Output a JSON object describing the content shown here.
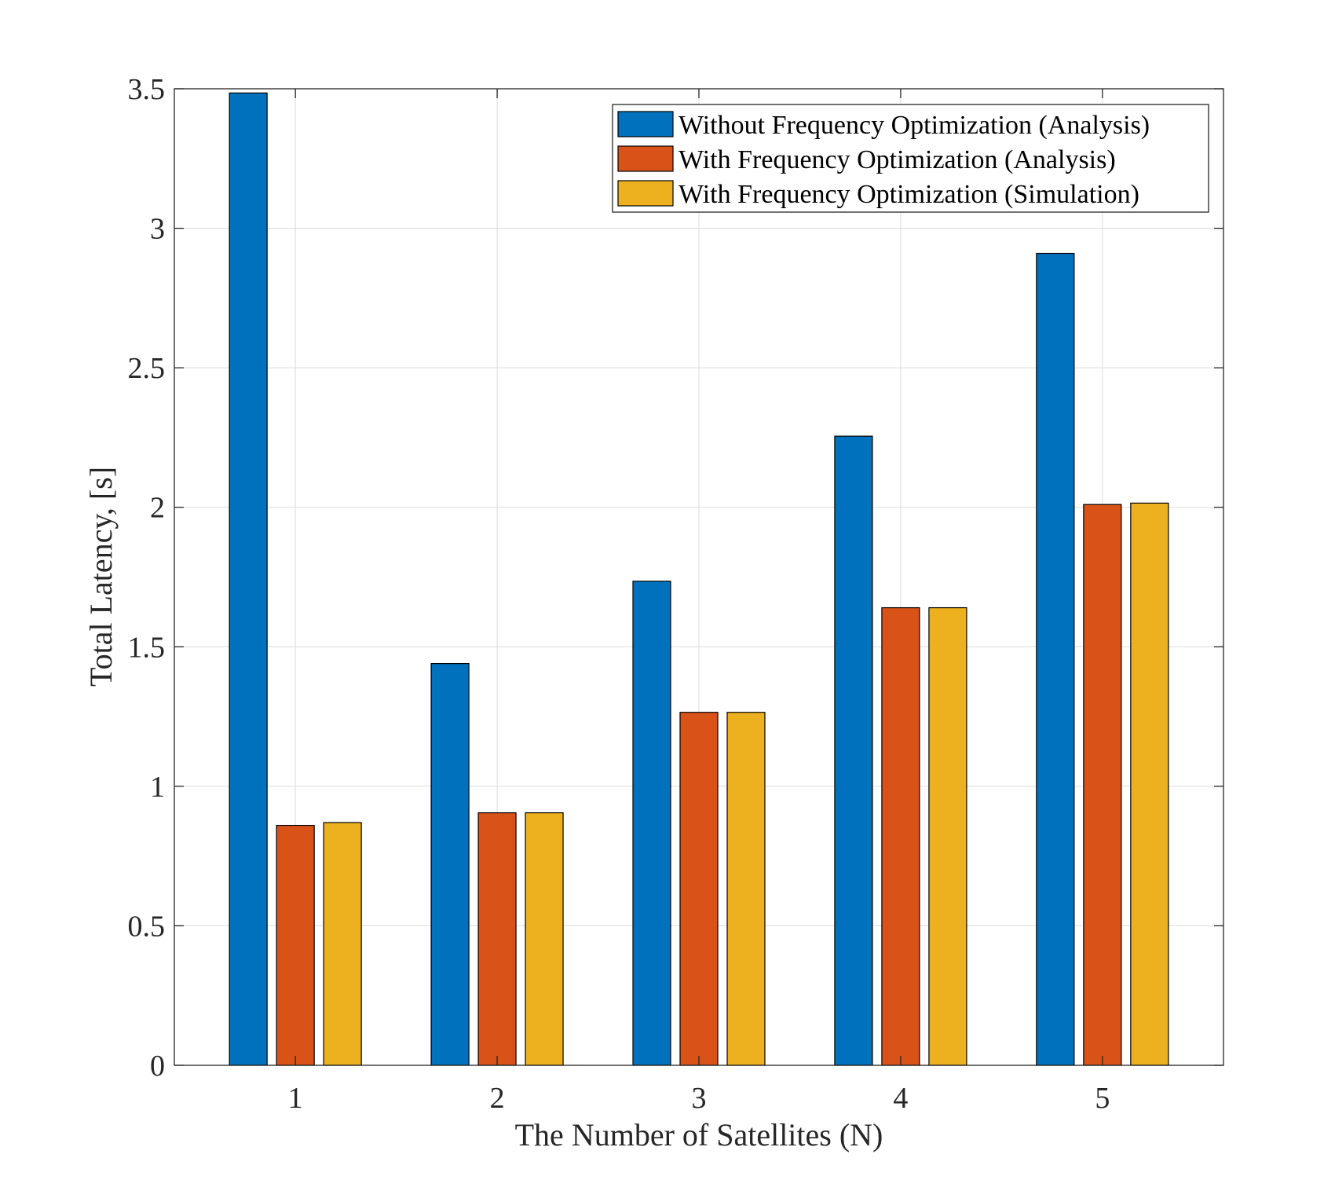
{
  "chart_data": {
    "type": "bar",
    "title": "",
    "xlabel": "The Number of Satellites (N)",
    "ylabel": "Total Latency, [s]",
    "categories": [
      "1",
      "2",
      "3",
      "4",
      "5"
    ],
    "ylim": [
      0,
      3.5
    ],
    "yticks": [
      0,
      0.5,
      1,
      1.5,
      2,
      2.5,
      3,
      3.5
    ],
    "ytick_labels": [
      "0",
      "0.5",
      "1",
      "1.5",
      "2",
      "2.5",
      "3",
      "3.5"
    ],
    "grid": true,
    "legend_position": "top-right",
    "series": [
      {
        "name": "Without Frequency Optimization (Analysis)",
        "color": "#0072BD",
        "values": [
          3.485,
          1.44,
          1.735,
          2.255,
          2.91
        ]
      },
      {
        "name": "With Frequency Optimization (Analysis)",
        "color": "#D95319",
        "values": [
          0.86,
          0.905,
          1.265,
          1.64,
          2.01
        ]
      },
      {
        "name": "With Frequency Optimization (Simulation)",
        "color": "#EDB120",
        "values": [
          0.87,
          0.905,
          1.265,
          1.64,
          2.015
        ]
      }
    ]
  }
}
